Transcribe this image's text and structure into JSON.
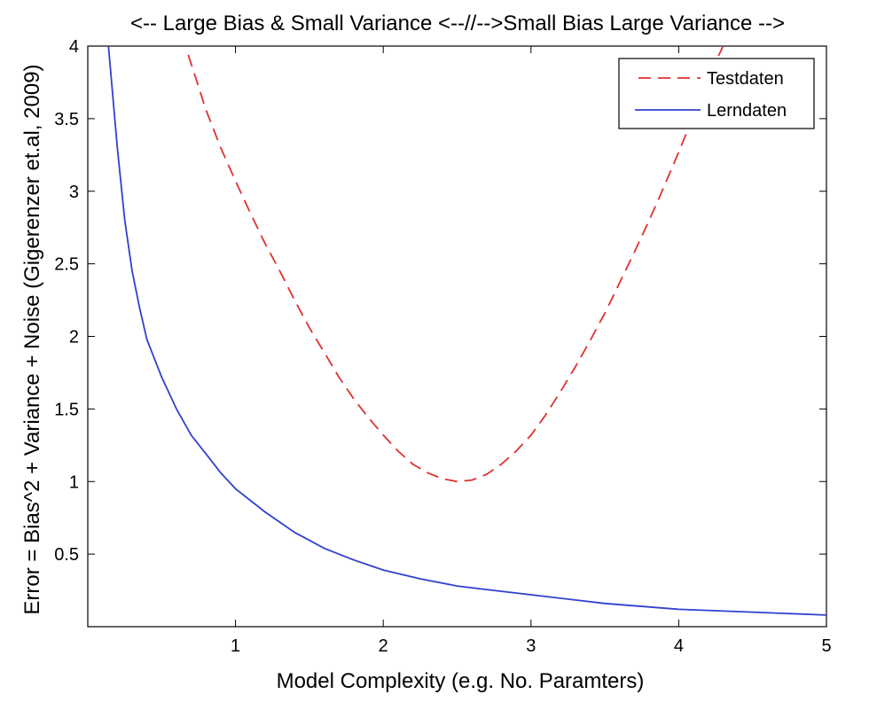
{
  "chart_data": {
    "type": "line",
    "title": "<-- Large Bias & Small Variance <--//-->Small Bias Large Variance -->",
    "xlabel": "Model Complexity (e.g. No. Paramters)",
    "ylabel": "Error = Bias^2 + Variance + Noise (Gigerenzer et.al, 2009)",
    "xlim": [
      0,
      5
    ],
    "ylim": [
      0,
      4
    ],
    "x_ticks": [
      "1",
      "2",
      "3",
      "4",
      "5"
    ],
    "y_ticks": [
      "0.5",
      "1",
      "1.5",
      "2",
      "2.5",
      "3",
      "3.5",
      "4"
    ],
    "grid": false,
    "legend_position": "top-right",
    "series": [
      {
        "name": "Testdaten",
        "color": "#e03030",
        "style": "dashed",
        "x": [
          0.68,
          0.8,
          0.9,
          1.0,
          1.1,
          1.2,
          1.3,
          1.4,
          1.5,
          1.6,
          1.7,
          1.8,
          1.9,
          2.0,
          2.1,
          2.2,
          2.3,
          2.4,
          2.5,
          2.6,
          2.7,
          2.8,
          2.9,
          3.0,
          3.1,
          3.2,
          3.3,
          3.4,
          3.5,
          3.6,
          3.7,
          3.8,
          3.9,
          4.0,
          4.1,
          4.2,
          4.3
        ],
        "values": [
          3.94,
          3.56,
          3.3,
          3.07,
          2.85,
          2.64,
          2.45,
          2.25,
          2.06,
          1.89,
          1.72,
          1.57,
          1.44,
          1.32,
          1.21,
          1.12,
          1.06,
          1.02,
          1.0,
          1.01,
          1.05,
          1.12,
          1.21,
          1.32,
          1.46,
          1.62,
          1.79,
          1.97,
          2.16,
          2.37,
          2.58,
          2.8,
          3.03,
          3.27,
          3.52,
          3.78,
          4.0
        ]
      },
      {
        "name": "Lerndaten",
        "color": "#3040d0",
        "style": "solid",
        "x": [
          0.14,
          0.2,
          0.25,
          0.3,
          0.35,
          0.4,
          0.5,
          0.6,
          0.7,
          0.8,
          0.9,
          1.0,
          1.2,
          1.4,
          1.6,
          1.8,
          2.0,
          2.25,
          2.5,
          2.75,
          3.0,
          3.5,
          4.0,
          4.5,
          5.0
        ],
        "values": [
          4.0,
          3.3,
          2.8,
          2.45,
          2.2,
          1.98,
          1.72,
          1.5,
          1.32,
          1.19,
          1.06,
          0.95,
          0.79,
          0.65,
          0.54,
          0.46,
          0.39,
          0.33,
          0.28,
          0.25,
          0.22,
          0.16,
          0.12,
          0.1,
          0.08
        ]
      }
    ]
  }
}
